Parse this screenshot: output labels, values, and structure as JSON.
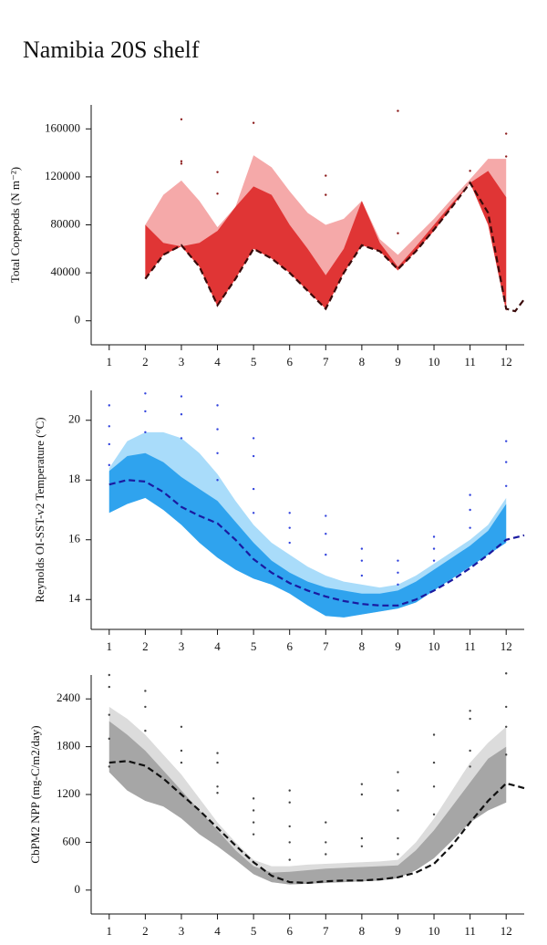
{
  "title": "Namibia 20S shelf",
  "chart_data": [
    {
      "type": "band",
      "ylabel": "Total Copepods (N m⁻²)",
      "xlim": [
        0.5,
        12.5
      ],
      "xticks": [
        1,
        2,
        3,
        4,
        5,
        6,
        7,
        8,
        9,
        10,
        11,
        12
      ],
      "ylim": [
        -20000,
        180000
      ],
      "yticks": [
        0,
        40000,
        80000,
        120000,
        160000
      ],
      "x": [
        2,
        2.5,
        3,
        3.5,
        4,
        4.5,
        5,
        5.5,
        6,
        6.5,
        7,
        7.5,
        8,
        8.5,
        9,
        9.5,
        10,
        10.5,
        11,
        11.5,
        12
      ],
      "bands": [
        {
          "color": "#f5a9a9",
          "upper": [
            80000,
            105000,
            117000,
            100000,
            78000,
            95000,
            138000,
            128000,
            108000,
            90000,
            80000,
            85000,
            100000,
            68000,
            55000,
            70000,
            85000,
            102000,
            118000,
            135000,
            135000
          ],
          "lower": [
            35000,
            55000,
            62000,
            45000,
            12000,
            35000,
            60000,
            52000,
            40000,
            25000,
            10000,
            40000,
            63000,
            58000,
            42000,
            58000,
            75000,
            95000,
            115000,
            80000,
            8000
          ]
        },
        {
          "color": "#e03535",
          "upper": [
            80000,
            65000,
            62000,
            65000,
            75000,
            95000,
            112000,
            105000,
            80000,
            60000,
            38000,
            60000,
            100000,
            65000,
            45000,
            62000,
            80000,
            98000,
            115000,
            125000,
            103000
          ],
          "lower": [
            35000,
            55000,
            62000,
            45000,
            12000,
            35000,
            60000,
            52000,
            40000,
            25000,
            10000,
            40000,
            63000,
            58000,
            42000,
            58000,
            75000,
            95000,
            115000,
            80000,
            8000
          ]
        }
      ],
      "line": {
        "color": "#3a0a0a",
        "x": [
          2,
          2.5,
          3,
          3.5,
          4,
          4.5,
          5,
          5.5,
          6,
          6.5,
          7,
          7.5,
          8,
          8.5,
          9,
          9.5,
          10,
          10.5,
          11,
          11.5,
          12,
          12.25,
          12.5
        ],
        "values": [
          35000,
          55000,
          63000,
          45000,
          13000,
          35000,
          60000,
          52000,
          40000,
          25000,
          10000,
          40000,
          63000,
          58000,
          43000,
          58000,
          76000,
          95000,
          115000,
          90000,
          10000,
          8000,
          18000
        ]
      },
      "points": {
        "color": "#8b1a1a",
        "x": [
          3,
          3,
          3,
          4,
          4,
          5,
          7,
          7,
          9,
          9,
          11,
          12,
          12
        ],
        "y": [
          168000,
          133000,
          131000,
          124000,
          106000,
          165000,
          121000,
          105000,
          175000,
          73000,
          125000,
          156000,
          137000
        ]
      }
    },
    {
      "type": "band",
      "ylabel": "Reynolds OI-SST-v2 Temperature (°C)",
      "xlim": [
        0.5,
        12.5
      ],
      "xticks": [
        1,
        2,
        3,
        4,
        5,
        6,
        7,
        8,
        9,
        10,
        11,
        12
      ],
      "ylim": [
        13,
        21
      ],
      "yticks": [
        14,
        16,
        18,
        20
      ],
      "x": [
        1,
        1.5,
        2,
        2.5,
        3,
        3.5,
        4,
        4.5,
        5,
        5.5,
        6,
        6.5,
        7,
        7.5,
        8,
        8.5,
        9,
        9.5,
        10,
        10.5,
        11,
        11.5,
        12
      ],
      "bands": [
        {
          "color": "#a9dcfa",
          "upper": [
            18.4,
            19.3,
            19.6,
            19.6,
            19.4,
            18.9,
            18.2,
            17.3,
            16.5,
            15.9,
            15.5,
            15.1,
            14.8,
            14.6,
            14.5,
            14.4,
            14.5,
            14.8,
            15.2,
            15.6,
            16.0,
            16.5,
            17.4
          ],
          "lower": [
            16.9,
            17.2,
            17.4,
            17.0,
            16.5,
            15.9,
            15.4,
            15.0,
            14.7,
            14.5,
            14.2,
            13.8,
            13.45,
            13.4,
            13.5,
            13.6,
            13.7,
            13.9,
            14.3,
            14.7,
            15.1,
            15.5,
            15.9
          ]
        },
        {
          "color": "#2fa3ee",
          "upper": [
            18.3,
            18.8,
            18.9,
            18.6,
            18.1,
            17.7,
            17.3,
            16.6,
            15.9,
            15.3,
            14.9,
            14.6,
            14.4,
            14.3,
            14.2,
            14.2,
            14.3,
            14.6,
            15.0,
            15.4,
            15.8,
            16.3,
            17.2
          ],
          "lower": [
            16.9,
            17.2,
            17.4,
            17.0,
            16.5,
            15.9,
            15.4,
            15.0,
            14.7,
            14.5,
            14.2,
            13.8,
            13.45,
            13.4,
            13.5,
            13.6,
            13.7,
            13.9,
            14.3,
            14.7,
            15.1,
            15.5,
            15.9
          ]
        }
      ],
      "line": {
        "color": "#1a1aa0",
        "x": [
          1,
          1.5,
          2,
          2.5,
          3,
          3.5,
          4,
          4.5,
          5,
          5.5,
          6,
          6.5,
          7,
          7.5,
          8,
          8.5,
          9,
          9.5,
          10,
          10.5,
          11,
          11.5,
          12,
          12.5
        ],
        "values": [
          17.85,
          18.0,
          17.95,
          17.6,
          17.1,
          16.8,
          16.55,
          16.0,
          15.35,
          14.9,
          14.55,
          14.3,
          14.1,
          13.95,
          13.85,
          13.8,
          13.8,
          14.0,
          14.3,
          14.65,
          15.05,
          15.5,
          16.0,
          16.15
        ]
      },
      "points": {
        "color": "#3344dd",
        "x": [
          1,
          1,
          1,
          1,
          2,
          2,
          2,
          3,
          3,
          3,
          4,
          4,
          4,
          4,
          5,
          5,
          5,
          5,
          6,
          6,
          6,
          7,
          7,
          7,
          8,
          8,
          8,
          9,
          9,
          9,
          10,
          10,
          10,
          11,
          11,
          11,
          12,
          12,
          12
        ],
        "y": [
          20.5,
          19.8,
          19.2,
          18.5,
          20.9,
          20.3,
          19.6,
          20.8,
          20.2,
          19.4,
          20.5,
          19.7,
          18.9,
          18.0,
          19.4,
          18.8,
          17.7,
          16.9,
          16.9,
          16.4,
          15.9,
          16.8,
          16.2,
          15.5,
          15.7,
          15.3,
          14.8,
          15.3,
          14.9,
          14.5,
          16.1,
          15.7,
          15.3,
          17.5,
          17.0,
          16.4,
          19.3,
          18.6,
          17.8
        ]
      }
    },
    {
      "type": "band",
      "ylabel": "CbPM2 NPP (mg-C/m2/day)",
      "xlim": [
        0.5,
        12.5
      ],
      "xticks": [
        1,
        2,
        3,
        4,
        5,
        6,
        7,
        8,
        9,
        10,
        11,
        12
      ],
      "ylim": [
        -300,
        2700
      ],
      "yticks": [
        0,
        600,
        1200,
        1800,
        2400
      ],
      "x": [
        1,
        1.5,
        2,
        2.5,
        3,
        3.5,
        4,
        4.5,
        5,
        5.5,
        6,
        6.5,
        7,
        7.5,
        8,
        8.5,
        9,
        9.5,
        10,
        10.5,
        11,
        11.5,
        12
      ],
      "bands": [
        {
          "color": "#dcdcdc",
          "upper": [
            2300,
            2150,
            1950,
            1700,
            1450,
            1150,
            850,
            600,
            380,
            300,
            300,
            320,
            330,
            340,
            350,
            360,
            380,
            600,
            900,
            1250,
            1600,
            1850,
            2050
          ],
          "lower": [
            1480,
            1250,
            1120,
            1050,
            900,
            700,
            550,
            380,
            200,
            100,
            70,
            80,
            90,
            100,
            110,
            120,
            150,
            250,
            400,
            620,
            850,
            1000,
            1100
          ]
        },
        {
          "color": "#a6a6a6",
          "upper": [
            2120,
            1950,
            1750,
            1500,
            1250,
            1000,
            750,
            500,
            300,
            220,
            230,
            250,
            270,
            280,
            290,
            300,
            310,
            500,
            750,
            1050,
            1350,
            1650,
            1800
          ],
          "lower": [
            1480,
            1250,
            1120,
            1050,
            900,
            700,
            550,
            380,
            200,
            100,
            70,
            80,
            90,
            100,
            110,
            120,
            150,
            250,
            400,
            620,
            850,
            1000,
            1100
          ]
        }
      ],
      "line": {
        "color": "#111111",
        "x": [
          1,
          1.5,
          2,
          2.5,
          3,
          3.5,
          4,
          4.5,
          5,
          5.5,
          6,
          6.5,
          7,
          7.5,
          8,
          8.5,
          9,
          9.5,
          10,
          10.5,
          11,
          11.5,
          12,
          12.5
        ],
        "values": [
          1600,
          1620,
          1560,
          1400,
          1200,
          1000,
          780,
          560,
          350,
          180,
          100,
          90,
          110,
          120,
          120,
          135,
          160,
          220,
          330,
          560,
          850,
          1120,
          1340,
          1280
        ]
      },
      "points": {
        "color": "#444444",
        "x": [
          1,
          1,
          1,
          1,
          1,
          2,
          2,
          2,
          3,
          3,
          3,
          4,
          4,
          4,
          4,
          5,
          5,
          5,
          5,
          6,
          6,
          6,
          6,
          6,
          7,
          7,
          7,
          8,
          8,
          8,
          8,
          9,
          9,
          9,
          9,
          9,
          10,
          10,
          10,
          10,
          11,
          11,
          11,
          11,
          12,
          12,
          12,
          12
        ],
        "y": [
          2700,
          2550,
          2200,
          1900,
          1550,
          2500,
          2300,
          2000,
          2050,
          1750,
          1600,
          1720,
          1600,
          1300,
          1220,
          1150,
          1000,
          850,
          700,
          1250,
          1100,
          800,
          600,
          380,
          850,
          600,
          450,
          1330,
          1200,
          650,
          550,
          1480,
          1250,
          1000,
          650,
          450,
          1950,
          1600,
          1300,
          950,
          2250,
          2150,
          1750,
          1550,
          2720,
          2300,
          2050,
          1700
        ]
      }
    }
  ]
}
